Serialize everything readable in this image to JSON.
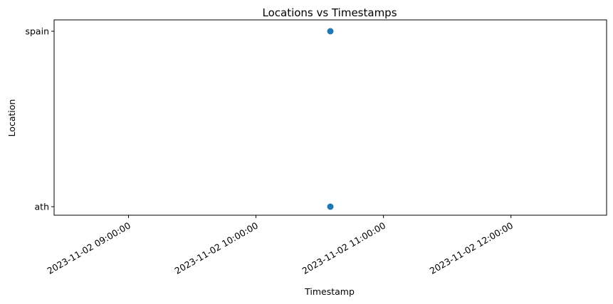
{
  "chart_data": {
    "type": "scatter",
    "title": "Locations vs Timestamps",
    "xlabel": "Timestamp",
    "ylabel": "Location",
    "x_ticks": [
      "2023-11-02 09:00:00",
      "2023-11-02 10:00:00",
      "2023-11-02 11:00:00",
      "2023-11-02 12:00:00"
    ],
    "y_categories": [
      "ath",
      "spain"
    ],
    "xlim": [
      "2023-11-02 08:25:00",
      "2023-11-02 12:45:00"
    ],
    "grid": false,
    "marker_color": "#1f77b4",
    "points": [
      {
        "x": "2023-11-02 10:35:00",
        "y": "spain"
      },
      {
        "x": "2023-11-02 10:35:00",
        "y": "ath"
      }
    ]
  }
}
